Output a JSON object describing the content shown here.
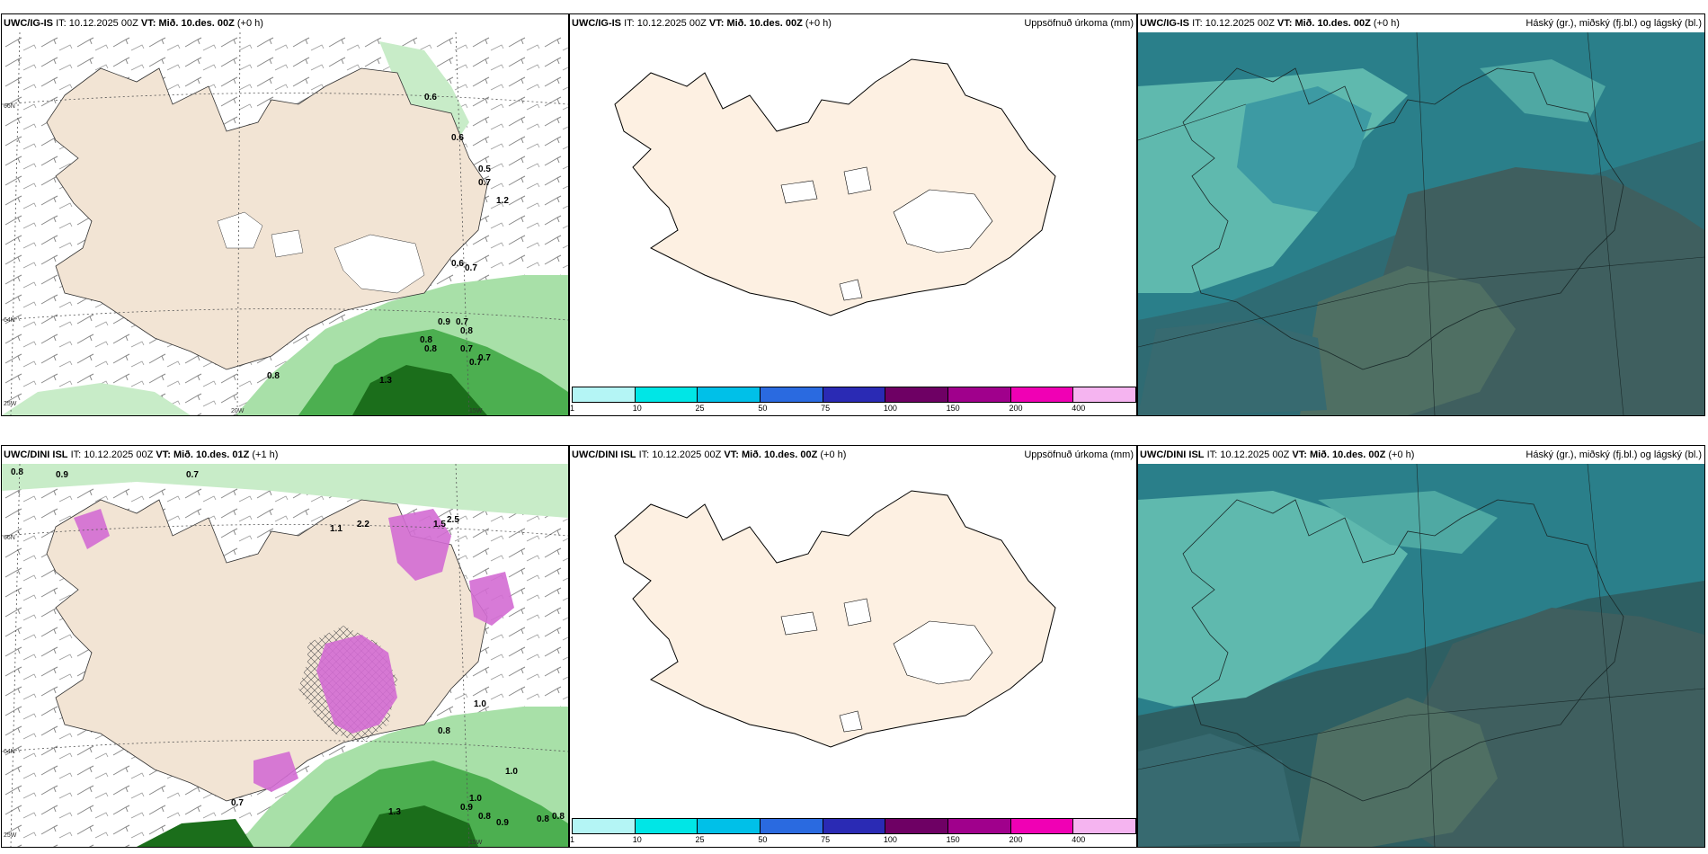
{
  "panels": [
    {
      "model": "UWC/IG-IS",
      "it_label": "IT:",
      "it_value": "10.12.2025 00Z",
      "vt_label": "VT:",
      "vt_value": "Mið. 10.des. 00Z",
      "lead": "(+0 h)",
      "right_title": "",
      "type": "wind"
    },
    {
      "model": "UWC/IG-IS",
      "it_label": "IT:",
      "it_value": "10.12.2025 00Z",
      "vt_label": "VT:",
      "vt_value": "Mið. 10.des. 00Z",
      "lead": "(+0 h)",
      "right_title": "Uppsöfnuð úrkoma (mm)",
      "type": "precip"
    },
    {
      "model": "UWC/IG-IS",
      "it_label": "IT:",
      "it_value": "10.12.2025 00Z",
      "vt_label": "VT:",
      "vt_value": "Mið. 10.des. 00Z",
      "lead": "(+0 h)",
      "right_title": "Háský (gr.), miðský (fj.bl.) og lágský (bl.)",
      "type": "cloud"
    },
    {
      "model": "UWC/DINI ISL",
      "it_label": "IT:",
      "it_value": "10.12.2025 00Z",
      "vt_label": "VT:",
      "vt_value": "Mið. 10.des. 01Z",
      "lead": "(+1 h)",
      "right_title": "",
      "type": "wind"
    },
    {
      "model": "UWC/DINI ISL",
      "it_label": "IT:",
      "it_value": "10.12.2025 00Z",
      "vt_label": "VT:",
      "vt_value": "Mið. 10.des. 00Z",
      "lead": "(+0 h)",
      "right_title": "Uppsöfnuð úrkoma (mm)",
      "type": "precip"
    },
    {
      "model": "UWC/DINI ISL",
      "it_label": "IT:",
      "it_value": "10.12.2025 00Z",
      "vt_label": "VT:",
      "vt_value": "Mið. 10.des. 00Z",
      "lead": "(+0 h)",
      "right_title": "Háský (gr.), miðský (fj.bl.) og lágský (bl.)",
      "type": "cloud"
    }
  ],
  "colorbar": {
    "labels": [
      "1",
      "10",
      "25",
      "50",
      "75",
      "100",
      "150",
      "200",
      "400"
    ],
    "colors": [
      "#b4f5f5",
      "#00e6e6",
      "#00c0e8",
      "#2a6ae0",
      "#2a2ab4",
      "#6e0064",
      "#a0008c",
      "#f000b4",
      "#f5b4f0"
    ]
  },
  "gridlabels": {
    "lat66": "66N",
    "lat64": "64N",
    "lon25": "25W",
    "lon20": "20W",
    "lon15": "15W"
  },
  "wind_labels_top": [
    "0.6",
    "0.6",
    "0.5",
    "0.7",
    "1.2",
    "0.6",
    "0.7",
    "0.7",
    "0.9",
    "0.8",
    "0.8",
    "0.8",
    "0.7",
    "0.7",
    "0.7",
    "0.8",
    "1.3"
  ],
  "wind_labels_bottom": [
    "0.8",
    "0.9",
    "0.7",
    "2.2",
    "1.1",
    "1.5",
    "2.5",
    "0.8",
    "1.0",
    "1.0",
    "0.7",
    "1.0",
    "0.9",
    "0.8",
    "0.9",
    "0.8",
    "0.8",
    "1.3"
  ]
}
